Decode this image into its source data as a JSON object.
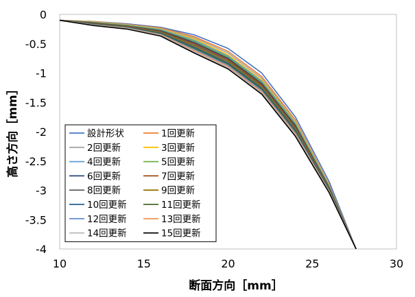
{
  "chart_data": {
    "type": "line",
    "xlabel": "断面方向［mm］",
    "ylabel": "高さ方向［mm］",
    "xlim": [
      10,
      30
    ],
    "ylim": [
      -4,
      0
    ],
    "xticks": [
      "10",
      "15",
      "20",
      "25",
      "30"
    ],
    "yticks": [
      "0",
      "-0.5",
      "-1",
      "-1.5",
      "-2",
      "-2.5",
      "-3",
      "-3.5",
      "-4"
    ],
    "grid": false,
    "legend_position": "bottom-left",
    "series": [
      {
        "name": "設計形状",
        "color": "#4472C4",
        "x": [
          10,
          12,
          14,
          16,
          18,
          20,
          22,
          24,
          26,
          27.6
        ],
        "y": [
          -0.1,
          -0.12,
          -0.16,
          -0.22,
          -0.35,
          -0.58,
          -1.0,
          -1.75,
          -2.85,
          -4.0
        ]
      },
      {
        "name": "1回更新",
        "color": "#ED7D31",
        "x": [
          10,
          12,
          14,
          16,
          18,
          20,
          22,
          24,
          26,
          27.6
        ],
        "y": [
          -0.1,
          -0.12,
          -0.17,
          -0.23,
          -0.38,
          -0.63,
          -1.06,
          -1.8,
          -2.9,
          -4.0
        ]
      },
      {
        "name": "2回更新",
        "color": "#A5A5A5",
        "x": [
          10,
          12,
          14,
          16,
          18,
          20,
          22,
          24,
          26,
          27.6
        ],
        "y": [
          -0.1,
          -0.125,
          -0.175,
          -0.24,
          -0.4,
          -0.66,
          -1.09,
          -1.82,
          -2.91,
          -4.0
        ]
      },
      {
        "name": "3回更新",
        "color": "#FFC000",
        "x": [
          10,
          12,
          14,
          16,
          18,
          20,
          22,
          24,
          26,
          27.6
        ],
        "y": [
          -0.1,
          -0.13,
          -0.18,
          -0.25,
          -0.42,
          -0.69,
          -1.12,
          -1.84,
          -2.92,
          -4.0
        ]
      },
      {
        "name": "4回更新",
        "color": "#5B9BD5",
        "x": [
          10,
          12,
          14,
          16,
          18,
          20,
          22,
          24,
          26,
          27.6
        ],
        "y": [
          -0.1,
          -0.135,
          -0.185,
          -0.26,
          -0.44,
          -0.71,
          -1.14,
          -1.86,
          -2.93,
          -4.0
        ]
      },
      {
        "name": "5回更新",
        "color": "#70AD47",
        "x": [
          10,
          12,
          14,
          16,
          18,
          20,
          22,
          24,
          26,
          27.6
        ],
        "y": [
          -0.1,
          -0.14,
          -0.19,
          -0.27,
          -0.46,
          -0.73,
          -1.16,
          -1.88,
          -2.94,
          -4.0
        ]
      },
      {
        "name": "6回更新",
        "color": "#264478",
        "x": [
          10,
          12,
          14,
          16,
          18,
          20,
          22,
          24,
          26,
          27.6
        ],
        "y": [
          -0.1,
          -0.145,
          -0.2,
          -0.28,
          -0.48,
          -0.75,
          -1.18,
          -1.9,
          -2.95,
          -4.0
        ]
      },
      {
        "name": "7回更新",
        "color": "#9E480E",
        "x": [
          10,
          12,
          14,
          16,
          18,
          20,
          22,
          24,
          26,
          27.6
        ],
        "y": [
          -0.1,
          -0.15,
          -0.205,
          -0.29,
          -0.5,
          -0.77,
          -1.2,
          -1.92,
          -2.96,
          -4.0
        ]
      },
      {
        "name": "8回更新",
        "color": "#636363",
        "x": [
          10,
          12,
          14,
          16,
          18,
          20,
          22,
          24,
          26,
          27.6
        ],
        "y": [
          -0.1,
          -0.155,
          -0.21,
          -0.3,
          -0.52,
          -0.79,
          -1.22,
          -1.94,
          -2.97,
          -4.0
        ]
      },
      {
        "name": "9回更新",
        "color": "#997300",
        "x": [
          10,
          12,
          14,
          16,
          18,
          20,
          22,
          24,
          26,
          27.6
        ],
        "y": [
          -0.1,
          -0.16,
          -0.215,
          -0.31,
          -0.54,
          -0.81,
          -1.24,
          -1.96,
          -2.98,
          -4.0
        ]
      },
      {
        "name": "10回更新",
        "color": "#255E91",
        "x": [
          10,
          12,
          14,
          16,
          18,
          20,
          22,
          24,
          26,
          27.6
        ],
        "y": [
          -0.1,
          -0.165,
          -0.22,
          -0.32,
          -0.56,
          -0.83,
          -1.26,
          -1.98,
          -2.99,
          -4.0
        ]
      },
      {
        "name": "11回更新",
        "color": "#43682B",
        "x": [
          10,
          12,
          14,
          16,
          18,
          20,
          22,
          24,
          26,
          27.6
        ],
        "y": [
          -0.1,
          -0.17,
          -0.225,
          -0.33,
          -0.58,
          -0.85,
          -1.28,
          -2.0,
          -3.0,
          -4.0
        ]
      },
      {
        "name": "12回更新",
        "color": "#698ED0",
        "x": [
          10,
          12,
          14,
          16,
          18,
          20,
          22,
          24,
          26,
          27.6
        ],
        "y": [
          -0.1,
          -0.175,
          -0.23,
          -0.34,
          -0.6,
          -0.87,
          -1.3,
          -2.02,
          -3.01,
          -4.0
        ]
      },
      {
        "name": "13回更新",
        "color": "#F1975A",
        "x": [
          10,
          12,
          14,
          16,
          18,
          20,
          22,
          24,
          26,
          27.6
        ],
        "y": [
          -0.1,
          -0.18,
          -0.235,
          -0.35,
          -0.62,
          -0.89,
          -1.32,
          -2.04,
          -3.02,
          -4.0
        ]
      },
      {
        "name": "14回更新",
        "color": "#B7B7B7",
        "x": [
          10,
          12,
          14,
          16,
          18,
          20,
          22,
          24,
          26,
          27.6
        ],
        "y": [
          -0.1,
          -0.185,
          -0.24,
          -0.36,
          -0.64,
          -0.91,
          -1.34,
          -2.06,
          -3.03,
          -4.0
        ]
      },
      {
        "name": "15回更新",
        "color": "#000000",
        "x": [
          10,
          12,
          14,
          16,
          18,
          20,
          22,
          24,
          26,
          27.6
        ],
        "y": [
          -0.1,
          -0.19,
          -0.25,
          -0.37,
          -0.66,
          -0.93,
          -1.36,
          -2.08,
          -3.04,
          -4.0
        ]
      }
    ]
  }
}
